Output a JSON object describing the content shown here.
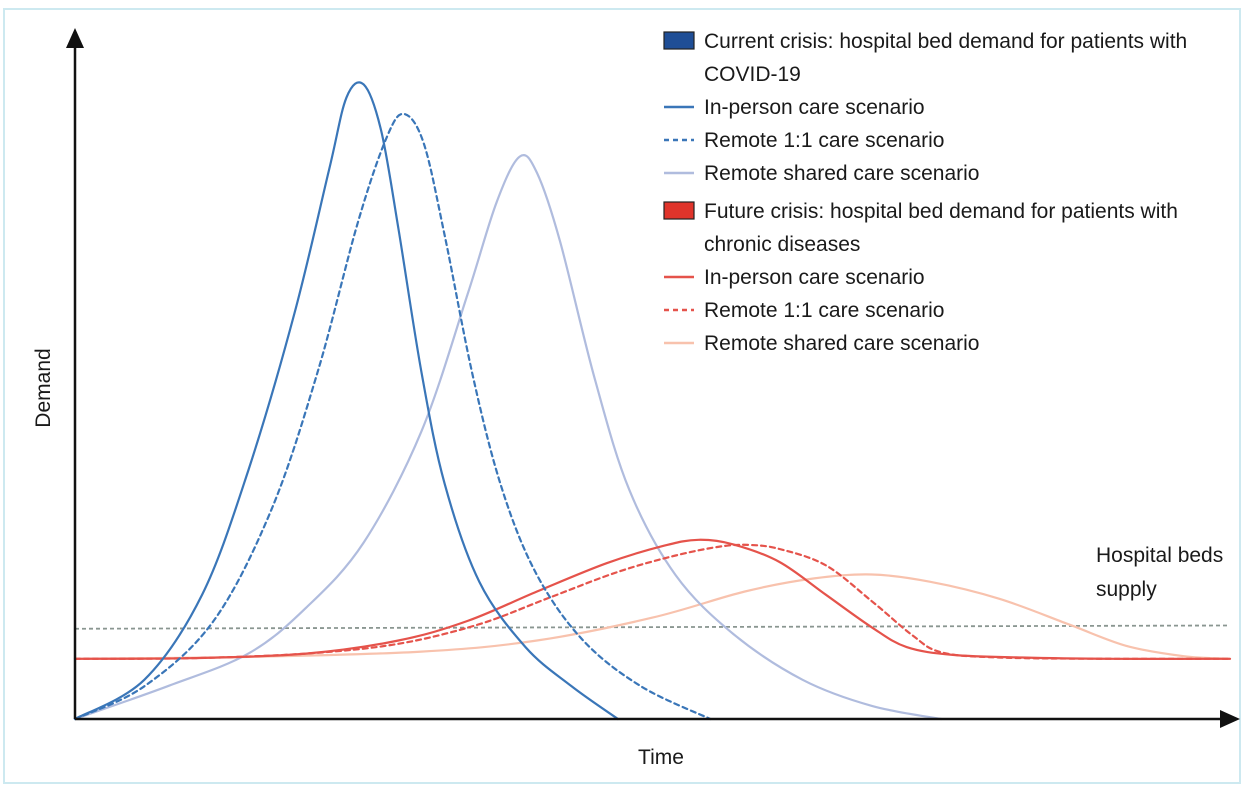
{
  "chart_data": {
    "type": "line",
    "xlabel": "Time",
    "ylabel": "Demand",
    "x_range": [
      0,
      100
    ],
    "y_range": [
      0,
      100
    ],
    "annotation": {
      "text": [
        "Hospital beds",
        "supply"
      ]
    },
    "supply_line": {
      "left_value": 13.8,
      "right_value": 14.3,
      "color": "#8a9691"
    },
    "legend_groups": [
      {
        "label": [
          "Current crisis: hospital bed demand for patients with",
          "COVID-19"
        ],
        "color": "#1f4e96",
        "items": [
          "In-person care scenario",
          "Remote 1:1 care scenario",
          "Remote shared care scenario"
        ]
      },
      {
        "label": [
          "Future crisis: hospital bed demand for patients with",
          "chronic diseases"
        ],
        "color": "#e0342b",
        "items": [
          "In-person care scenario",
          "Remote 1:1 care scenario",
          "Remote shared care scenario"
        ]
      }
    ],
    "series": [
      {
        "name": "In-person care scenario",
        "group": "Current crisis",
        "color": "#3a76b8",
        "style": "solid",
        "points": [
          [
            0,
            0
          ],
          [
            6,
            6
          ],
          [
            11,
            19
          ],
          [
            15,
            38
          ],
          [
            19,
            62
          ],
          [
            22,
            84
          ],
          [
            23.5,
            95
          ],
          [
            25,
            97
          ],
          [
            26.5,
            90
          ],
          [
            28,
            75
          ],
          [
            30,
            53
          ],
          [
            32,
            36
          ],
          [
            35,
            21
          ],
          [
            39,
            11
          ],
          [
            43,
            5
          ],
          [
            47,
            0
          ]
        ]
      },
      {
        "name": "Remote 1:1 care scenario",
        "group": "Current crisis",
        "color": "#3a76b8",
        "style": "dashed",
        "points": [
          [
            0,
            0
          ],
          [
            6,
            5
          ],
          [
            12,
            15
          ],
          [
            17,
            32
          ],
          [
            21,
            53
          ],
          [
            24.5,
            76
          ],
          [
            27,
            89
          ],
          [
            28.5,
            92.5
          ],
          [
            30.2,
            88
          ],
          [
            32,
            74
          ],
          [
            34.5,
            52
          ],
          [
            37,
            35
          ],
          [
            40,
            22
          ],
          [
            44,
            12
          ],
          [
            49,
            5
          ],
          [
            55,
            0
          ]
        ]
      },
      {
        "name": "Remote shared care scenario",
        "group": "Current crisis",
        "color": "#b0bcde",
        "style": "solid",
        "points": [
          [
            0,
            0
          ],
          [
            8,
            5
          ],
          [
            15,
            10
          ],
          [
            20,
            17
          ],
          [
            25,
            27
          ],
          [
            30,
            44
          ],
          [
            34,
            65
          ],
          [
            36.5,
            79
          ],
          [
            38.5,
            86
          ],
          [
            40,
            83.5
          ],
          [
            42,
            73
          ],
          [
            45,
            52
          ],
          [
            48,
            35
          ],
          [
            52,
            22
          ],
          [
            57,
            13
          ],
          [
            63,
            6
          ],
          [
            69,
            2
          ],
          [
            75,
            0
          ]
        ]
      },
      {
        "name": "In-person care scenario",
        "group": "Future crisis",
        "color": "#e5534b",
        "style": "solid",
        "points": [
          [
            0,
            9.2
          ],
          [
            10,
            9.3
          ],
          [
            20,
            10
          ],
          [
            28,
            12
          ],
          [
            34,
            15
          ],
          [
            40,
            19.5
          ],
          [
            46,
            23.8
          ],
          [
            51,
            26.5
          ],
          [
            54,
            27.4
          ],
          [
            57,
            26.7
          ],
          [
            61,
            24
          ],
          [
            65,
            19
          ],
          [
            69,
            14
          ],
          [
            72,
            11
          ],
          [
            76,
            9.8
          ],
          [
            82,
            9.4
          ],
          [
            90,
            9.2
          ],
          [
            100,
            9.2
          ]
        ]
      },
      {
        "name": "Remote 1:1 care scenario",
        "group": "Future crisis",
        "color": "#e5534b",
        "style": "dashed",
        "points": [
          [
            0,
            9.2
          ],
          [
            10,
            9.3
          ],
          [
            20,
            10
          ],
          [
            28,
            11.5
          ],
          [
            35,
            14.5
          ],
          [
            41,
            18.5
          ],
          [
            47,
            22.5
          ],
          [
            52,
            25
          ],
          [
            56,
            26.4
          ],
          [
            58.5,
            26.6
          ],
          [
            61,
            26
          ],
          [
            65,
            23.5
          ],
          [
            69,
            18
          ],
          [
            72.5,
            12.8
          ],
          [
            75,
            10.2
          ],
          [
            80,
            9.4
          ],
          [
            90,
            9.2
          ],
          [
            100,
            9.2
          ]
        ]
      },
      {
        "name": "Remote shared care scenario",
        "group": "Future crisis",
        "color": "#f8c2ad",
        "style": "solid",
        "points": [
          [
            0,
            9.2
          ],
          [
            15,
            9.5
          ],
          [
            30,
            10.3
          ],
          [
            40,
            12
          ],
          [
            50,
            15.5
          ],
          [
            58,
            19.5
          ],
          [
            64,
            21.5
          ],
          [
            69,
            22.1
          ],
          [
            74,
            21
          ],
          [
            80,
            18.4
          ],
          [
            86,
            14.5
          ],
          [
            91,
            11.2
          ],
          [
            96,
            9.6
          ],
          [
            100,
            9.2
          ]
        ]
      }
    ]
  }
}
